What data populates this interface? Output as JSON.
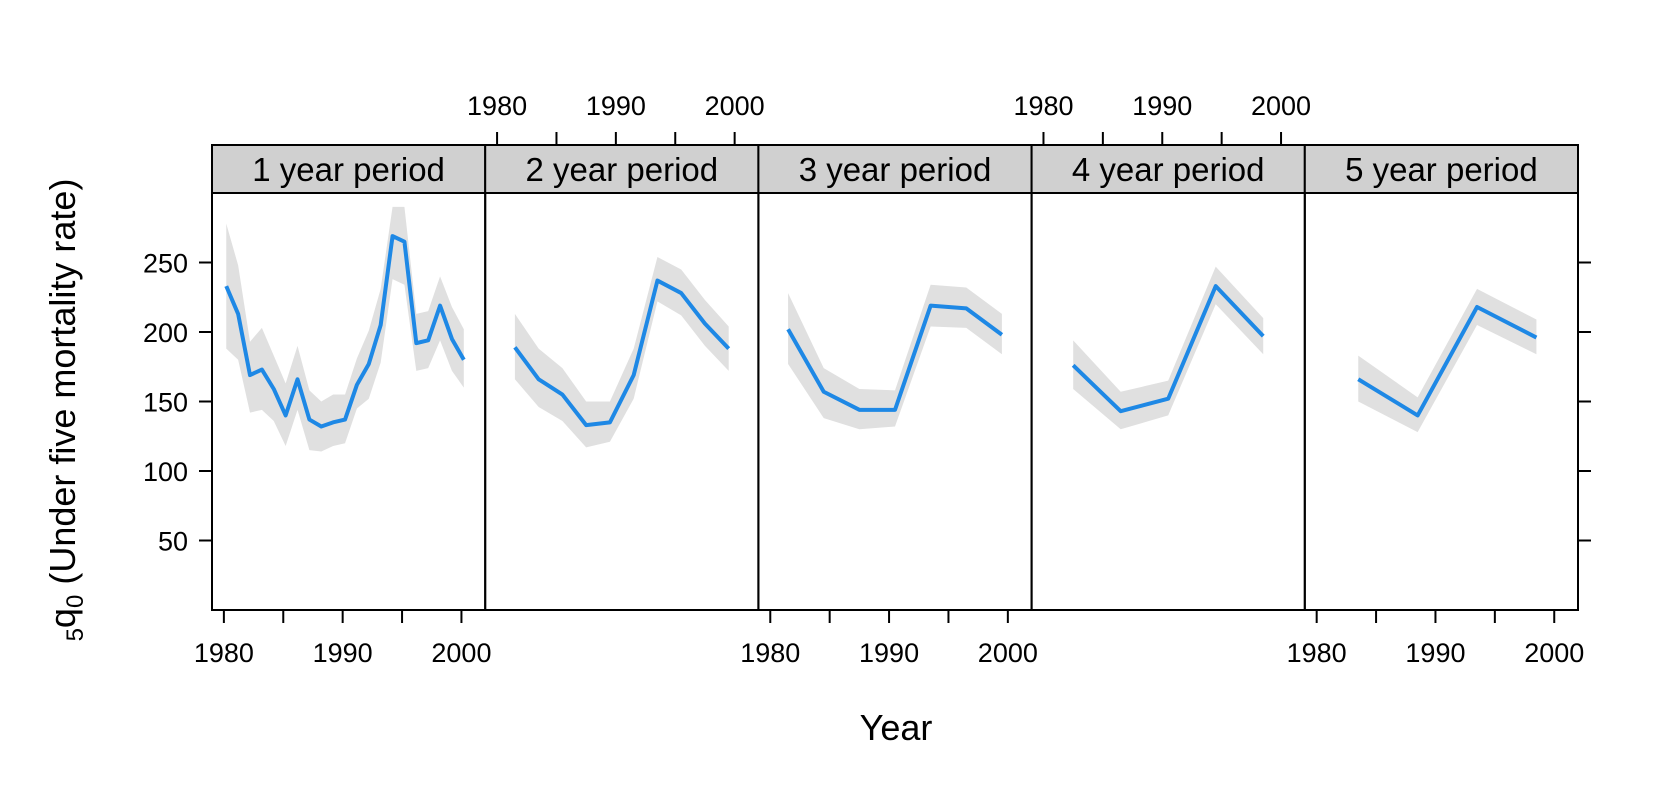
{
  "chart_data": {
    "type": "line",
    "xlabel": "Year",
    "ylabel": {
      "subscript_before": "5",
      "symbol": "q",
      "subscript_after": "0",
      "text": " (Under five mortality rate)"
    },
    "xlim": [
      1979,
      2002
    ],
    "ylim": [
      0,
      300
    ],
    "x_ticks": [
      1980,
      1985,
      1990,
      1995,
      2000
    ],
    "x_tick_labels": [
      "1980",
      "1990",
      "2000"
    ],
    "y_ticks": [
      50,
      100,
      150,
      200,
      250
    ],
    "y_tick_labels": [
      "50",
      "100",
      "150",
      "200",
      "250"
    ],
    "colors": {
      "line": "#1e88e5",
      "band": "#e0e0e0",
      "strip": "#d0d0d0"
    },
    "panels": [
      {
        "strip": "1 year period",
        "x": [
          1980.2,
          1981.2,
          1982.2,
          1983.2,
          1984.2,
          1985.2,
          1986.2,
          1987.2,
          1988.2,
          1989.2,
          1990.2,
          1991.2,
          1992.2,
          1993.2,
          1994.2,
          1995.2,
          1996.2,
          1997.2,
          1998.2,
          1999.2,
          2000.2
        ],
        "y": [
          233,
          213,
          169,
          173,
          159,
          140,
          166,
          137,
          132,
          135,
          137,
          162,
          177,
          205,
          269,
          265,
          192,
          194,
          219,
          195,
          180
        ],
        "lower": [
          188,
          180,
          142,
          144,
          136,
          118,
          144,
          115,
          114,
          118,
          120,
          145,
          152,
          178,
          238,
          234,
          172,
          174,
          194,
          172,
          160
        ],
        "upper": [
          278,
          248,
          193,
          203,
          183,
          163,
          190,
          158,
          150,
          155,
          155,
          181,
          201,
          231,
          290,
          290,
          213,
          215,
          240,
          218,
          202
        ]
      },
      {
        "strip": "2 year period",
        "x": [
          1981.5,
          1983.5,
          1985.5,
          1987.5,
          1989.5,
          1991.5,
          1993.5,
          1995.5,
          1997.5,
          1999.5
        ],
        "y": [
          189,
          166,
          155,
          133,
          135,
          169,
          237,
          228,
          206,
          188
        ],
        "lower": [
          166,
          146,
          136,
          117,
          121,
          152,
          222,
          212,
          190,
          172
        ],
        "upper": [
          213,
          188,
          174,
          150,
          150,
          188,
          254,
          245,
          223,
          204
        ]
      },
      {
        "strip": "3 year period",
        "x": [
          1981.5,
          1984.5,
          1987.5,
          1990.5,
          1993.5,
          1996.5,
          1999.5
        ],
        "y": [
          202,
          157,
          144,
          144,
          219,
          217,
          198
        ],
        "lower": [
          177,
          138,
          130,
          132,
          204,
          203,
          184
        ],
        "upper": [
          228,
          174,
          159,
          158,
          234,
          232,
          213
        ]
      },
      {
        "strip": "4 year period",
        "x": [
          1982.5,
          1986.5,
          1990.5,
          1994.5,
          1998.5
        ],
        "y": [
          176,
          143,
          152,
          233,
          197
        ],
        "lower": [
          159,
          130,
          140,
          220,
          184
        ],
        "upper": [
          194,
          157,
          165,
          247,
          210
        ]
      },
      {
        "strip": "5 year period",
        "x": [
          1983.5,
          1988.5,
          1993.5,
          1998.5
        ],
        "y": [
          166,
          140,
          218,
          196
        ],
        "lower": [
          150,
          128,
          205,
          184
        ],
        "upper": [
          183,
          153,
          231,
          209
        ]
      }
    ]
  }
}
